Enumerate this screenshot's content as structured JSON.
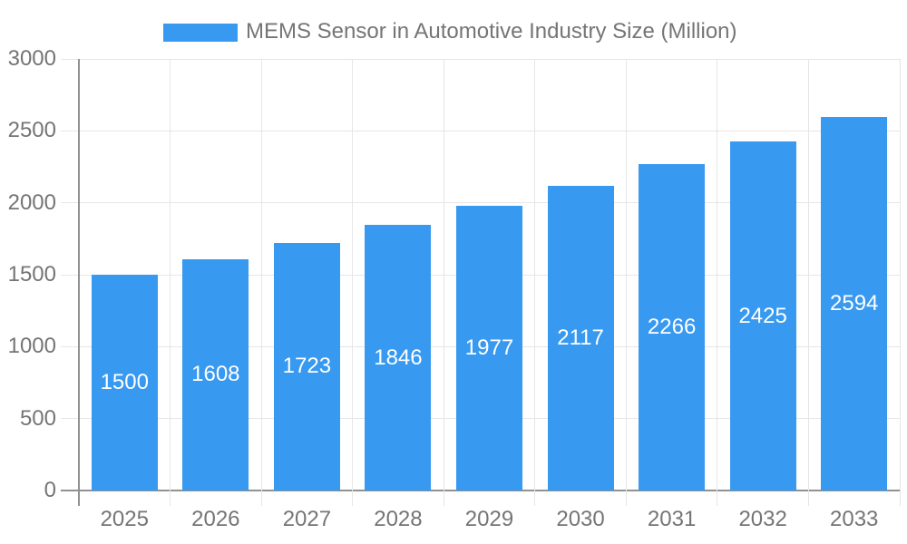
{
  "chart_data": {
    "type": "bar",
    "title": "MEMS Sensor in Automotive Industry Size (Million)",
    "categories": [
      "2025",
      "2026",
      "2027",
      "2028",
      "2029",
      "2030",
      "2031",
      "2032",
      "2033"
    ],
    "values": [
      1500,
      1608,
      1723,
      1846,
      1977,
      2117,
      2266,
      2425,
      2594
    ],
    "xlabel": "",
    "ylabel": "",
    "ylim": [
      0,
      3000
    ],
    "ytick_step": 500,
    "grid": true,
    "legend_position": "top",
    "bar_color": "#3899F0",
    "value_label_color": "#FFFFFF",
    "axis_label_color": "#757575",
    "grid_color": "#E6E6E6",
    "axis_line_color": "#919191",
    "background_color": "#FFFFFF"
  }
}
